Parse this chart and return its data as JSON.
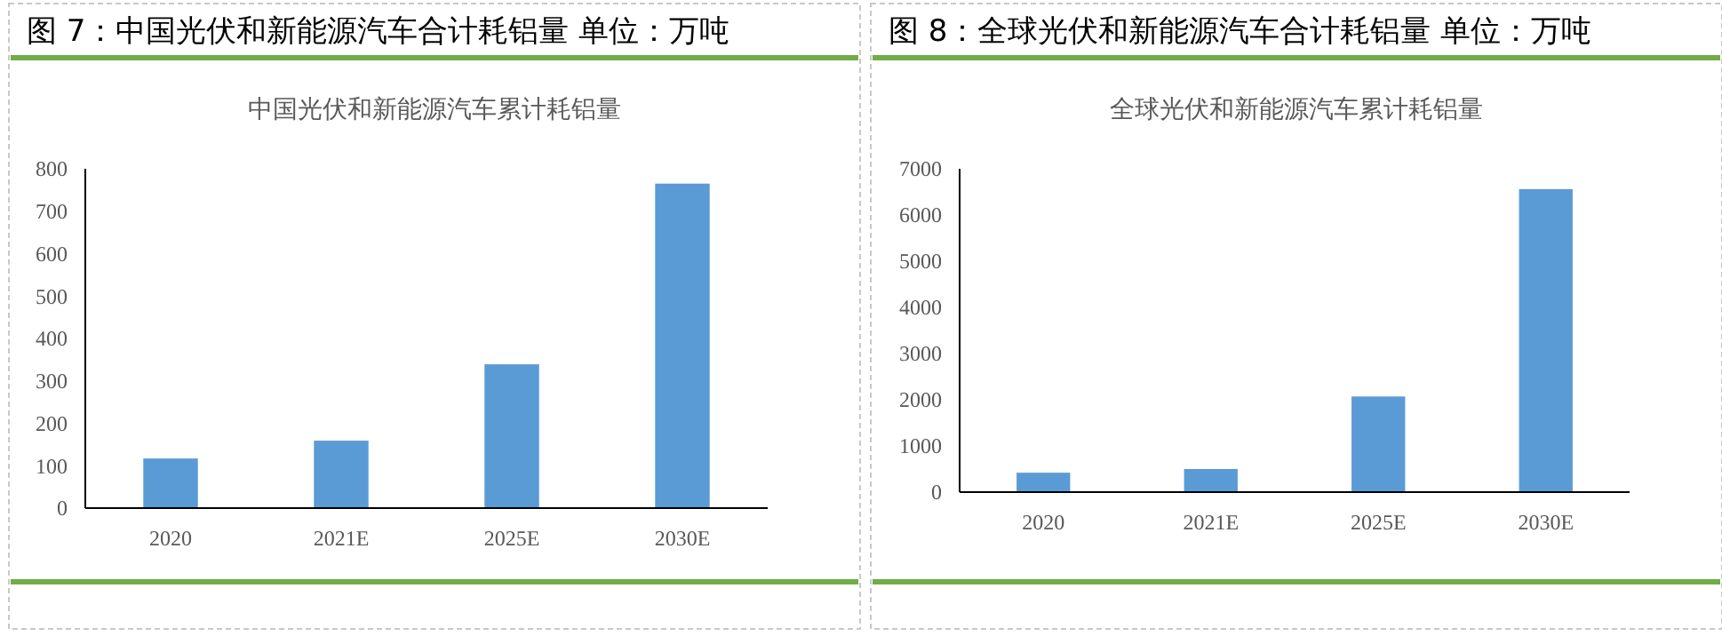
{
  "chart_data": [
    {
      "type": "bar",
      "title": "图 7：中国光伏和新能源汽车合计耗铝量  单位：万吨",
      "subtitle": "中国光伏和新能源汽车累计耗铝量",
      "categories": [
        "2020",
        "2021E",
        "2025E",
        "2030E"
      ],
      "values": [
        117,
        159,
        339,
        765
      ],
      "color": "#5b9bd5",
      "ylim": [
        0,
        800
      ],
      "yticks": [
        0,
        100,
        200,
        300,
        400,
        500,
        600,
        700,
        800
      ],
      "grid": false
    },
    {
      "type": "bar",
      "title": "图 8：全球光伏和新能源汽车合计耗铝量  单位：万吨",
      "subtitle": "全球光伏和新能源汽车累计耗铝量",
      "categories": [
        "2020",
        "2021E",
        "2025E",
        "2030E"
      ],
      "values": [
        420,
        500,
        2070,
        6560
      ],
      "color": "#5b9bd5",
      "ylim": [
        0,
        7000
      ],
      "yticks": [
        0,
        1000,
        2000,
        3000,
        4000,
        5000,
        6000,
        7000
      ],
      "grid": false
    }
  ]
}
